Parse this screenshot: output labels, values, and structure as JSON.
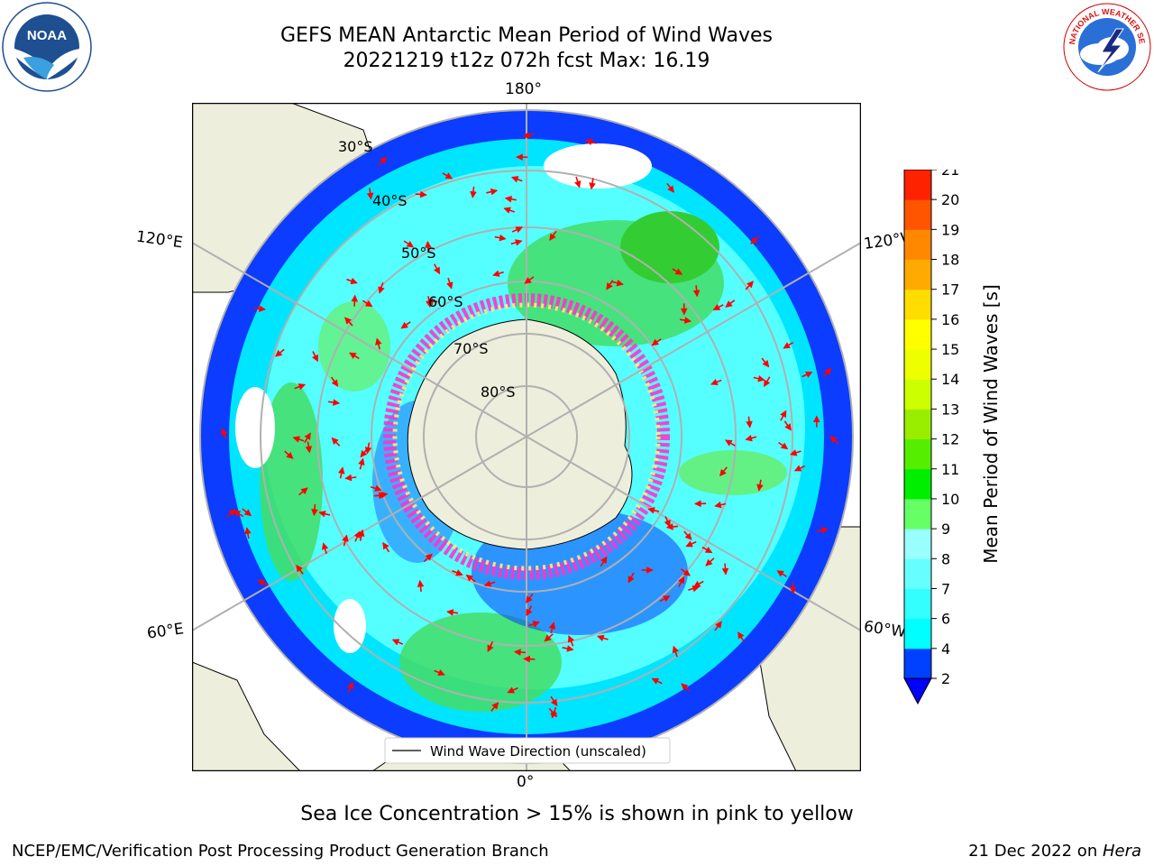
{
  "header": {
    "title_line1": "GEFS MEAN Antarctic Mean Period of Wind Waves",
    "title_line2": "20221219 t12z 072h fcst   Max: 16.19"
  },
  "logos": {
    "noaa_text": "NOAA",
    "noaa_ring_text": "NATIONAL OCEANIC AND ATMOSPHERIC ADMINISTRATION · U.S. DEPARTMENT OF COMMERCE",
    "nws_ring_text": "NATIONAL WEATHER SERVICE"
  },
  "map": {
    "lon_labels": {
      "top": "180°",
      "bottom": "0°",
      "left_upper": "120°E",
      "right_upper": "120°W",
      "left_lower": "60°E",
      "right_lower": "60°W"
    },
    "lat_labels": [
      "30°S",
      "40°S",
      "50°S",
      "60°S",
      "70°S",
      "80°S"
    ],
    "legend_label": "Wind Wave Direction (unscaled)",
    "colors": {
      "land": "#eeeedd",
      "ice_pink": "#ff33cc",
      "ice_yellow": "#ffee77",
      "arrow": "#ff0000",
      "grid": "#b0b0b0"
    }
  },
  "colorbar": {
    "label": "Mean Period of Wind Waves [s]",
    "ticks": [
      "2",
      "4",
      "6",
      "7",
      "8",
      "9",
      "10",
      "11",
      "12",
      "13",
      "14",
      "15",
      "16",
      "17",
      "18",
      "19",
      "20",
      "21"
    ],
    "colors": [
      "#0040ff",
      "#00ffff",
      "#33ffff",
      "#66ffff",
      "#99ffff",
      "#66ff66",
      "#00ee00",
      "#55ee00",
      "#99ee00",
      "#ccff00",
      "#eeff00",
      "#ffff00",
      "#ffdd00",
      "#ffaa00",
      "#ff8800",
      "#ff5500",
      "#ff2200"
    ]
  },
  "chart_data": {
    "type": "heatmap",
    "title": "GEFS MEAN Antarctic Mean Period of Wind Waves",
    "variable": "Mean Period of Wind Waves [s]",
    "max": 16.19,
    "colorbar_range": [
      2,
      21
    ],
    "colorbar_levels": [
      2,
      4,
      6,
      7,
      8,
      9,
      10,
      11,
      12,
      13,
      14,
      15,
      16,
      17,
      18,
      19,
      20,
      21
    ]
  },
  "caption": "Sea Ice Concentration > 15% is shown in pink to yellow",
  "footer": {
    "left": "NCEP/EMC/Verification Post Processing Product Generation Branch",
    "right_date": "21 Dec 2022 on ",
    "right_machine": "Hera"
  }
}
